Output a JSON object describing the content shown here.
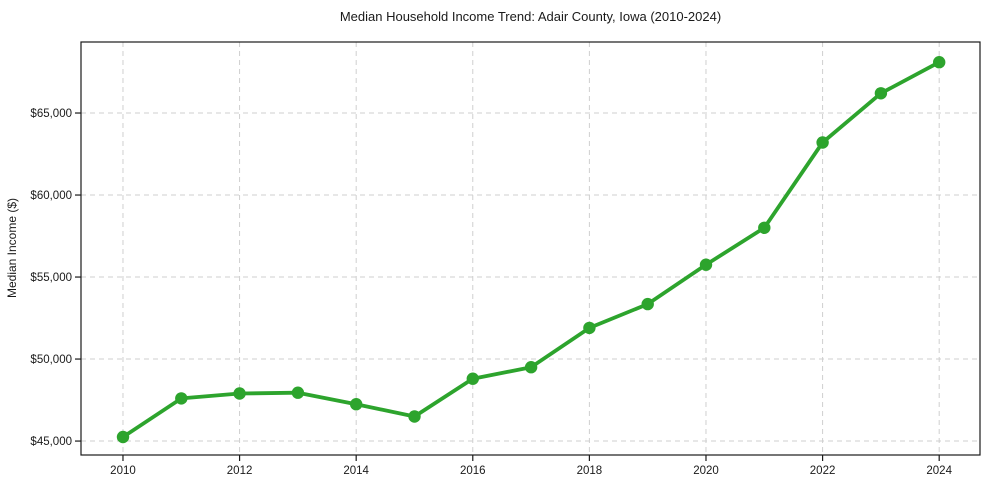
{
  "chart_data": {
    "type": "line",
    "title": "Median Household Income Trend: Adair County, Iowa (2010-2024)",
    "xlabel": "",
    "ylabel": "Median Income ($)",
    "series_name": "Median Household Income",
    "x": [
      2010,
      2011,
      2012,
      2013,
      2014,
      2015,
      2016,
      2017,
      2018,
      2019,
      2020,
      2021,
      2022,
      2023,
      2024
    ],
    "values": [
      45250,
      47600,
      47900,
      47950,
      47250,
      46500,
      48800,
      49500,
      51900,
      53350,
      55750,
      58000,
      63200,
      66200,
      68100
    ],
    "x_tick_values": [
      2010,
      2012,
      2014,
      2016,
      2018,
      2020,
      2022,
      2024
    ],
    "x_tick_labels": [
      "2010",
      "2012",
      "2014",
      "2016",
      "2018",
      "2020",
      "2022",
      "2024"
    ],
    "y_tick_values": [
      45000,
      50000,
      55000,
      60000,
      65000
    ],
    "y_tick_labels": [
      "$45,000",
      "$50,000",
      "$55,000",
      "$60,000",
      "$65,000"
    ],
    "xlim": [
      2009.28,
      2024.7
    ],
    "ylim": [
      44150,
      69330
    ],
    "grid": true,
    "legend": "none",
    "line_color": "#2da42d",
    "marker_color": "#2da42d",
    "grid_color": "#cfcfcf",
    "axis_color": "#1a1a1a",
    "text_color": "#1a1a1a",
    "background_color": "#ffffff"
  }
}
